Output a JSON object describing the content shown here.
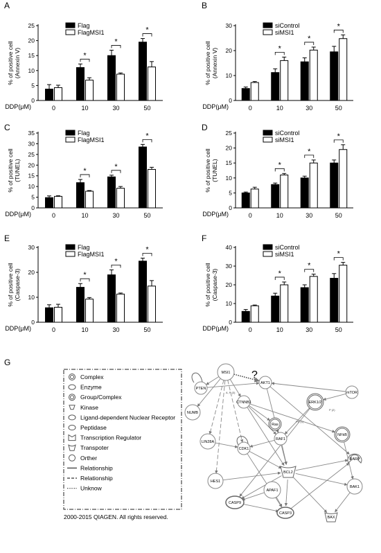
{
  "panel_g_label": "G",
  "legend_box": {
    "items": [
      {
        "icon": "complex-icon",
        "label": "Complex"
      },
      {
        "icon": "enzyme-icon",
        "label": "Enzyme"
      },
      {
        "icon": "group-complex-icon",
        "label": "Group/Complex"
      },
      {
        "icon": "kinase-icon",
        "label": "Kinase"
      },
      {
        "icon": "nuclear-receptor-icon",
        "label": "Ligand-dependent Nuclear Receptor"
      },
      {
        "icon": "peptidase-icon",
        "label": "Peptidase"
      },
      {
        "icon": "transcription-regulator-icon",
        "label": "Transcription Regulator"
      },
      {
        "icon": "transporter-icon",
        "label": "Transpoter"
      },
      {
        "icon": "other-icon",
        "label": "Orther"
      },
      {
        "icon": "solid-line-icon",
        "label": "Relationship"
      },
      {
        "icon": "dashed-line-icon",
        "label": "Relationship"
      },
      {
        "icon": "dotted-line-icon",
        "label": "Unknow"
      }
    ]
  },
  "copyright": "2000-2015 QIAGEN. All rights reserved.",
  "network": {
    "question_mark": "?",
    "edge_labels": [
      "A, P (3)",
      "PP (1)",
      "P (2)"
    ],
    "nodes": [
      {
        "id": "MSI1",
        "label": "MSI1"
      },
      {
        "id": "AKT1",
        "label": "AKT1"
      },
      {
        "id": "PTEN",
        "label": "PTEN"
      },
      {
        "id": "mTOR",
        "label": "mTOR"
      },
      {
        "id": "NUMB",
        "label": "NUMB"
      },
      {
        "id": "CTNNB1",
        "label": "CTNNB1"
      },
      {
        "id": "ERK12",
        "label": "ERK1/2"
      },
      {
        "id": "LIN28A",
        "label": "LIN28A"
      },
      {
        "id": "Ras",
        "label": "Ras"
      },
      {
        "id": "RAF1",
        "label": "RAF1"
      },
      {
        "id": "NFkB",
        "label": "NFkB"
      },
      {
        "id": "RARP",
        "label": "RARP"
      },
      {
        "id": "CDK1",
        "label": "CDK1"
      },
      {
        "id": "HES1",
        "label": "HES1"
      },
      {
        "id": "BCL2",
        "label": "BCL2"
      },
      {
        "id": "BAK1",
        "label": "BAK1"
      },
      {
        "id": "APAF1",
        "label": "APAF1"
      },
      {
        "id": "CASP9",
        "label": "CASP9"
      },
      {
        "id": "CASP3",
        "label": "CASP3"
      },
      {
        "id": "BAX",
        "label": "BAX"
      }
    ],
    "edges": [
      [
        "MSI1",
        "AKT1"
      ],
      [
        "MSI1",
        "PTEN"
      ],
      [
        "MSI1",
        "NUMB"
      ],
      [
        "MSI1",
        "CTNNB1"
      ],
      [
        "MSI1",
        "LIN28A"
      ],
      [
        "MSI1",
        "CDK1"
      ],
      [
        "MSI1",
        "HES1"
      ],
      [
        "PTEN",
        "AKT1"
      ],
      [
        "mTOR",
        "AKT1"
      ],
      [
        "mTOR",
        "ERK12"
      ],
      [
        "CTNNB1",
        "Ras"
      ],
      [
        "CTNNB1",
        "RAF1"
      ],
      [
        "CTNNB1",
        "NFkB"
      ],
      [
        "CTNNB1",
        "BCL2"
      ],
      [
        "ERK12",
        "RAF1"
      ],
      [
        "ERK12",
        "CASP9"
      ],
      [
        "AKT1",
        "BCL2"
      ],
      [
        "AKT1",
        "RARP"
      ],
      [
        "Ras",
        "RAF1"
      ],
      [
        "RAF1",
        "CDK1"
      ],
      [
        "LIN28A",
        "CDK1"
      ],
      [
        "CDK1",
        "BCL2"
      ],
      [
        "CDK1",
        "CASP3"
      ],
      [
        "HES1",
        "BCL2"
      ],
      [
        "NFkB",
        "BAK1"
      ],
      [
        "BCL2",
        "RARP"
      ],
      [
        "BCL2",
        "BAK1"
      ],
      [
        "BCL2",
        "CASP9"
      ],
      [
        "BCL2",
        "BAX"
      ],
      [
        "BCL2",
        "CASP3"
      ],
      [
        "APAF1",
        "CASP9"
      ],
      [
        "APAF1",
        "CASP3"
      ],
      [
        "CASP9",
        "CASP3"
      ],
      [
        "CASP3",
        "RARP"
      ],
      [
        "BAK1",
        "BAX"
      ],
      [
        "RAF1",
        "BCL2"
      ]
    ]
  },
  "chart_data": [
    {
      "type": "bar",
      "panel": "A",
      "xlabel": "DDP(μM)",
      "ylabel": "% of positive cell",
      "ylabel2": "(Annexin V)",
      "categories": [
        "0",
        "10",
        "30",
        "50"
      ],
      "ylim": [
        0,
        25
      ],
      "yticks": [
        0,
        5,
        10,
        15,
        20,
        25
      ],
      "series": [
        {
          "name": "Flag",
          "fill": "#000000",
          "values": [
            3.8,
            11,
            15,
            19.5
          ],
          "errors": [
            1.5,
            1.2,
            1.8,
            1.2
          ]
        },
        {
          "name": "FlagMSI1",
          "fill": "#ffffff",
          "values": [
            4.3,
            6.8,
            8.8,
            11.2
          ],
          "errors": [
            0.8,
            0.8,
            0.4,
            1.8
          ]
        }
      ],
      "significance": [
        "",
        "*",
        "*",
        "*"
      ]
    },
    {
      "type": "bar",
      "panel": "B",
      "xlabel": "DDP(μM)",
      "ylabel": "% of positive cell",
      "ylabel2": "(Annexin V)",
      "categories": [
        "0",
        "10",
        "30",
        "50"
      ],
      "ylim": [
        0,
        30
      ],
      "yticks": [
        0,
        10,
        20,
        30
      ],
      "series": [
        {
          "name": "siControl",
          "fill": "#000000",
          "values": [
            4.8,
            11.2,
            15.5,
            19.5
          ],
          "errors": [
            0.6,
            1.5,
            1.6,
            2.2
          ]
        },
        {
          "name": "siMSI1",
          "fill": "#ffffff",
          "values": [
            7.2,
            16,
            20.2,
            24.8
          ],
          "errors": [
            0.4,
            1.4,
            1.2,
            1.5
          ]
        }
      ],
      "significance": [
        "",
        "*",
        "*",
        "*"
      ]
    },
    {
      "type": "bar",
      "panel": "C",
      "xlabel": "DDP(μM)",
      "ylabel": "% of positive cell",
      "ylabel2": "(TUNEL)",
      "categories": [
        "0",
        "10",
        "30",
        "50"
      ],
      "ylim": [
        0,
        35
      ],
      "yticks": [
        0,
        5,
        10,
        15,
        20,
        25,
        30,
        35
      ],
      "series": [
        {
          "name": "Flag",
          "fill": "#000000",
          "values": [
            4.8,
            11.8,
            14.5,
            28.5
          ],
          "errors": [
            0.8,
            1.5,
            0.8,
            1.2
          ]
        },
        {
          "name": "FlagMSI1",
          "fill": "#ffffff",
          "values": [
            5.4,
            7.8,
            9.2,
            18
          ],
          "errors": [
            0.3,
            0.3,
            0.8,
            1.0
          ]
        }
      ],
      "significance": [
        "",
        "*",
        "*",
        "*"
      ]
    },
    {
      "type": "bar",
      "panel": "D",
      "xlabel": "DDP(μM)",
      "ylabel": "% of positive cell",
      "ylabel2": "(TUNEL)",
      "categories": [
        "0",
        "10",
        "30",
        "50"
      ],
      "ylim": [
        0,
        25
      ],
      "yticks": [
        0,
        5,
        10,
        15,
        20,
        25
      ],
      "series": [
        {
          "name": "siControl",
          "fill": "#000000",
          "values": [
            5,
            7.8,
            10,
            15
          ],
          "errors": [
            0.3,
            0.5,
            0.6,
            1.0
          ]
        },
        {
          "name": "siMSI1",
          "fill": "#ffffff",
          "values": [
            6.3,
            11,
            15,
            19.5
          ],
          "errors": [
            0.6,
            0.5,
            1.0,
            1.6
          ]
        }
      ],
      "significance": [
        "",
        "*",
        "*",
        "*"
      ]
    },
    {
      "type": "bar",
      "panel": "E",
      "xlabel": "DDP(μM)",
      "ylabel": "% of positive cell",
      "ylabel2": "(Caspase-3)",
      "categories": [
        "0",
        "10",
        "30",
        "50"
      ],
      "ylim": [
        0,
        30
      ],
      "yticks": [
        0,
        10,
        20,
        30
      ],
      "series": [
        {
          "name": "Flag",
          "fill": "#000000",
          "values": [
            5.8,
            14,
            19,
            24.5
          ],
          "errors": [
            1.2,
            1.5,
            2.0,
            1.2
          ]
        },
        {
          "name": "FlagMSI1",
          "fill": "#ffffff",
          "values": [
            6,
            9.3,
            11.3,
            14.5
          ],
          "errors": [
            1.2,
            0.6,
            0.4,
            2.2
          ]
        }
      ],
      "significance": [
        "",
        "*",
        "*",
        "*"
      ]
    },
    {
      "type": "bar",
      "panel": "F",
      "xlabel": "DDP(μM)",
      "ylabel": "% of positive cell",
      "ylabel2": "(Caspase-3)",
      "categories": [
        "0",
        "10",
        "30",
        "50"
      ],
      "ylim": [
        0,
        40
      ],
      "yticks": [
        0,
        10,
        20,
        30,
        40
      ],
      "series": [
        {
          "name": "siControl",
          "fill": "#000000",
          "values": [
            5.8,
            14,
            18.5,
            23.5
          ],
          "errors": [
            1.0,
            1.5,
            1.5,
            2.5
          ]
        },
        {
          "name": "siMSI1",
          "fill": "#ffffff",
          "values": [
            8.8,
            20,
            24.5,
            30.5
          ],
          "errors": [
            0.4,
            1.5,
            1.2,
            1.5
          ]
        }
      ],
      "significance": [
        "",
        "*",
        "*",
        "*"
      ]
    }
  ]
}
